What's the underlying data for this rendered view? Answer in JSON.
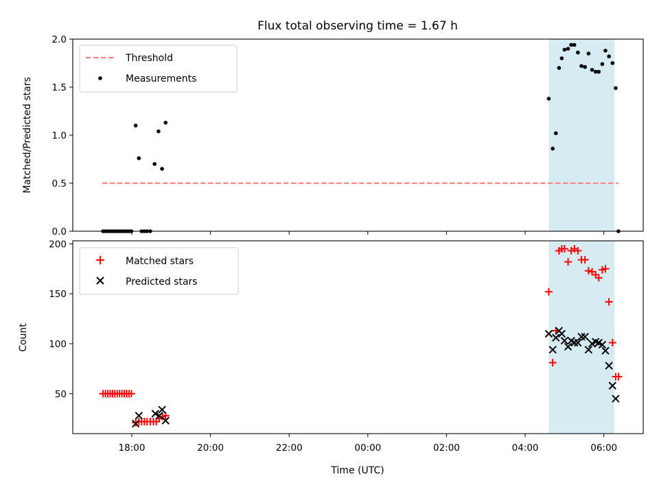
{
  "chart_data": [
    {
      "type": "scatter",
      "title": "Flux total observing time = 1.67 h",
      "ylabel": "Matched/Predicted stars",
      "xlabel": "",
      "x_unit": "UTC hours (times after midnight written as 24+h)",
      "xlim": [
        16.5,
        31.0
      ],
      "ylim": [
        0,
        2.0
      ],
      "yticks": [
        0.0,
        0.5,
        1.0,
        1.5,
        2.0
      ],
      "ytick_labels": [
        "0.0",
        "0.5",
        "1.0",
        "1.5",
        "2.0"
      ],
      "shaded_span": [
        28.6,
        30.27
      ],
      "shaded_color": "#add8e6",
      "legend": {
        "placement": "upper left",
        "entries": [
          "Threshold",
          "Measurements"
        ]
      },
      "threshold": {
        "name": "Threshold",
        "value": 0.5,
        "x_range": [
          17.25,
          30.37
        ],
        "color": "#ff7f7f",
        "style": "dashed"
      },
      "series": [
        {
          "name": "Measurements",
          "color": "#000000",
          "marker": "dot",
          "x": [
            17.27,
            17.33,
            17.39,
            17.45,
            17.51,
            17.57,
            17.63,
            17.69,
            17.75,
            17.81,
            17.87,
            17.93,
            17.99,
            18.1,
            18.18,
            18.25,
            18.32,
            18.39,
            18.47,
            18.58,
            18.68,
            18.77,
            18.86,
            28.6,
            28.7,
            28.78,
            28.86,
            28.93,
            29.0,
            29.09,
            29.17,
            29.25,
            29.34,
            29.43,
            29.52,
            29.61,
            29.7,
            29.79,
            29.87,
            29.96,
            30.04,
            30.13,
            30.22,
            30.3,
            30.37
          ],
          "y": [
            0,
            0,
            0,
            0,
            0,
            0,
            0,
            0,
            0,
            0,
            0,
            0,
            0,
            1.1,
            0.76,
            0,
            0,
            0,
            0,
            0.7,
            1.04,
            0.65,
            1.13,
            1.38,
            0.86,
            1.02,
            1.7,
            1.8,
            1.89,
            1.9,
            1.94,
            1.94,
            1.86,
            1.72,
            1.71,
            1.85,
            1.68,
            1.66,
            1.66,
            1.74,
            1.88,
            1.82,
            1.75,
            1.49,
            0
          ]
        }
      ]
    },
    {
      "type": "scatter",
      "title": "",
      "ylabel": "Count",
      "xlabel": "Time (UTC)",
      "x_unit": "UTC hours (times after midnight written as 24+h)",
      "xlim": [
        16.5,
        31.0
      ],
      "ylim": [
        10,
        203
      ],
      "xticks": [
        18,
        20,
        22,
        24,
        26,
        28,
        30
      ],
      "xtick_labels": [
        "18:00",
        "20:00",
        "22:00",
        "00:00",
        "02:00",
        "04:00",
        "06:00"
      ],
      "yticks": [
        50,
        100,
        150,
        200
      ],
      "ytick_labels": [
        "50",
        "100",
        "150",
        "200"
      ],
      "shaded_span": [
        28.6,
        30.27
      ],
      "shaded_color": "#add8e6",
      "legend": {
        "placement": "upper left",
        "entries": [
          "Matched stars",
          "Predicted stars"
        ]
      },
      "series": [
        {
          "name": "Matched stars",
          "color": "#ff0000",
          "marker": "plus",
          "x": [
            17.27,
            17.33,
            17.39,
            17.45,
            17.51,
            17.57,
            17.63,
            17.69,
            17.75,
            17.81,
            17.87,
            17.93,
            17.99,
            18.1,
            18.18,
            18.25,
            18.32,
            18.39,
            18.47,
            18.55,
            18.62,
            18.7,
            18.78,
            18.86,
            28.6,
            28.7,
            28.78,
            28.86,
            28.93,
            29.0,
            29.09,
            29.17,
            29.25,
            29.34,
            29.43,
            29.52,
            29.61,
            29.7,
            29.79,
            29.87,
            29.96,
            30.04,
            30.13,
            30.22,
            30.3,
            30.37
          ],
          "y": [
            50,
            50,
            50,
            50,
            50,
            50,
            50,
            50,
            50,
            50,
            50,
            50,
            50,
            21,
            22,
            22,
            22,
            22,
            22,
            22,
            22,
            25,
            27,
            28,
            152,
            81,
            113,
            193,
            195,
            195,
            182,
            193,
            195,
            193,
            184,
            184,
            173,
            172,
            169,
            166,
            174,
            175,
            142,
            101,
            67,
            67
          ]
        },
        {
          "name": "Predicted stars",
          "color": "#000000",
          "marker": "x",
          "x": [
            18.1,
            18.18,
            18.6,
            18.7,
            18.77,
            18.86,
            28.6,
            28.7,
            28.78,
            28.86,
            28.93,
            29.0,
            29.09,
            29.17,
            29.25,
            29.34,
            29.43,
            29.52,
            29.61,
            29.7,
            29.79,
            29.87,
            29.96,
            30.04,
            30.13,
            30.22,
            30.3
          ],
          "y": [
            20,
            28,
            30,
            28,
            34,
            23,
            110,
            94,
            106,
            113,
            110,
            103,
            97,
            103,
            101,
            101,
            107,
            107,
            94,
            100,
            102,
            101,
            99,
            93,
            78,
            58,
            45
          ]
        }
      ]
    }
  ]
}
